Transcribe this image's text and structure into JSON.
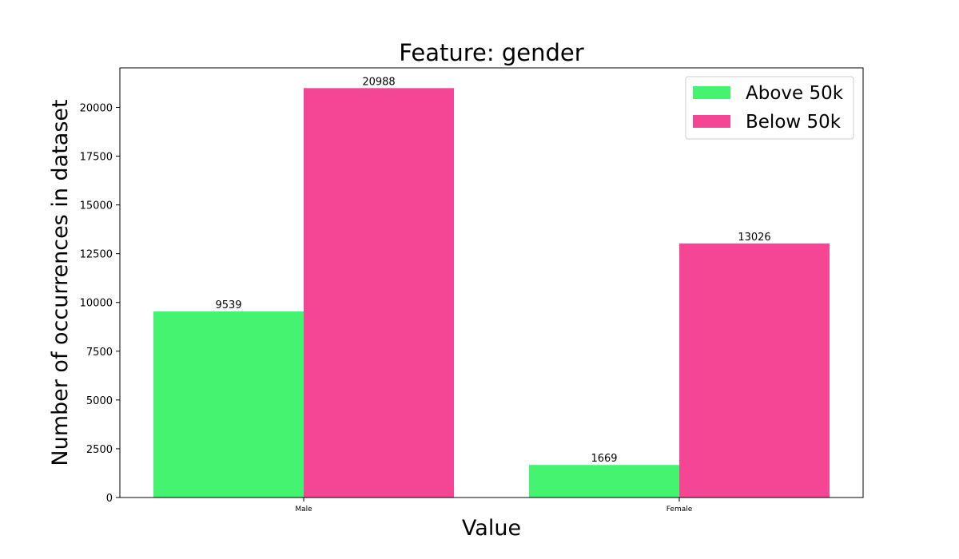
{
  "chart_data": {
    "type": "bar",
    "title": "Feature: gender",
    "xlabel": "Value",
    "ylabel": "Number of occurrences in dataset",
    "categories": [
      "Male",
      "Female"
    ],
    "series": [
      {
        "name": "Above 50k",
        "values": [
          9539,
          1669
        ],
        "color": "#44f471"
      },
      {
        "name": "Below 50k",
        "values": [
          20988,
          13026
        ],
        "color": "#f44694"
      }
    ],
    "ylim": [
      0,
      22025
    ],
    "yticks": [
      0,
      2500,
      5000,
      7500,
      10000,
      12500,
      15000,
      17500,
      20000
    ],
    "grid": false,
    "legend_position": "top-right"
  }
}
